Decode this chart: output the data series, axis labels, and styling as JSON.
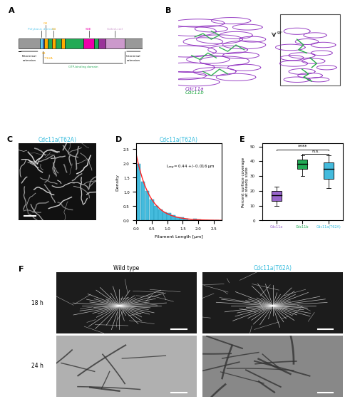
{
  "panel_labels": [
    "A",
    "B",
    "C",
    "D",
    "E",
    "F"
  ],
  "domain_colors": {
    "gray": "#999999",
    "polybasic": "#66ccee",
    "blue_thin": "#4488ff",
    "G1_orange": "#ffaa00",
    "green": "#22aa55",
    "SUE": "#ee00aa",
    "purple": "#993399",
    "coiled_coil": "#cc99cc"
  },
  "hist_color": "#44bbdd",
  "hist_edge": "#2299bb",
  "exp_color": "#ff2222",
  "lavg_text": "L$_{avg}$= 0.44 +/- 0.016 μm",
  "xlabel_D": "Filament Length [μm]",
  "ylabel_D": "Density",
  "title_D": "Cdc11a(T62A)",
  "title_C": "Cdc11a(T62A)",
  "ylabel_E": "Percent surface coverage\nat steady state",
  "box_colors": [
    "#9966cc",
    "#22aa55",
    "#44bbdd"
  ],
  "box_labels": [
    "Cdc11a",
    "Cdc11b",
    "Cdc11a(T62A)"
  ],
  "box_data": {
    "Cdc11a": {
      "median": 17,
      "q1": 13,
      "q3": 20,
      "whisker_low": 10,
      "whisker_high": 23
    },
    "Cdc11b": {
      "median": 38,
      "q1": 35,
      "q3": 41,
      "whisker_low": 30,
      "whisker_high": 44
    },
    "Cdc11aT62A": {
      "median": 35,
      "q1": 28,
      "q3": 39,
      "whisker_low": 22,
      "whisker_high": 44
    }
  },
  "ylim_E": [
    0,
    52
  ],
  "sig_line1": "****",
  "sig_line2": "n.s.",
  "wt_label": "Wild type",
  "t62a_label": "Cdc11a(T62A)",
  "time_labels": [
    "18 h",
    "24 h"
  ],
  "background_color": "#ffffff",
  "text_cyan": "#33bbdd",
  "text_green": "#22aa55",
  "text_purple": "#9966cc"
}
